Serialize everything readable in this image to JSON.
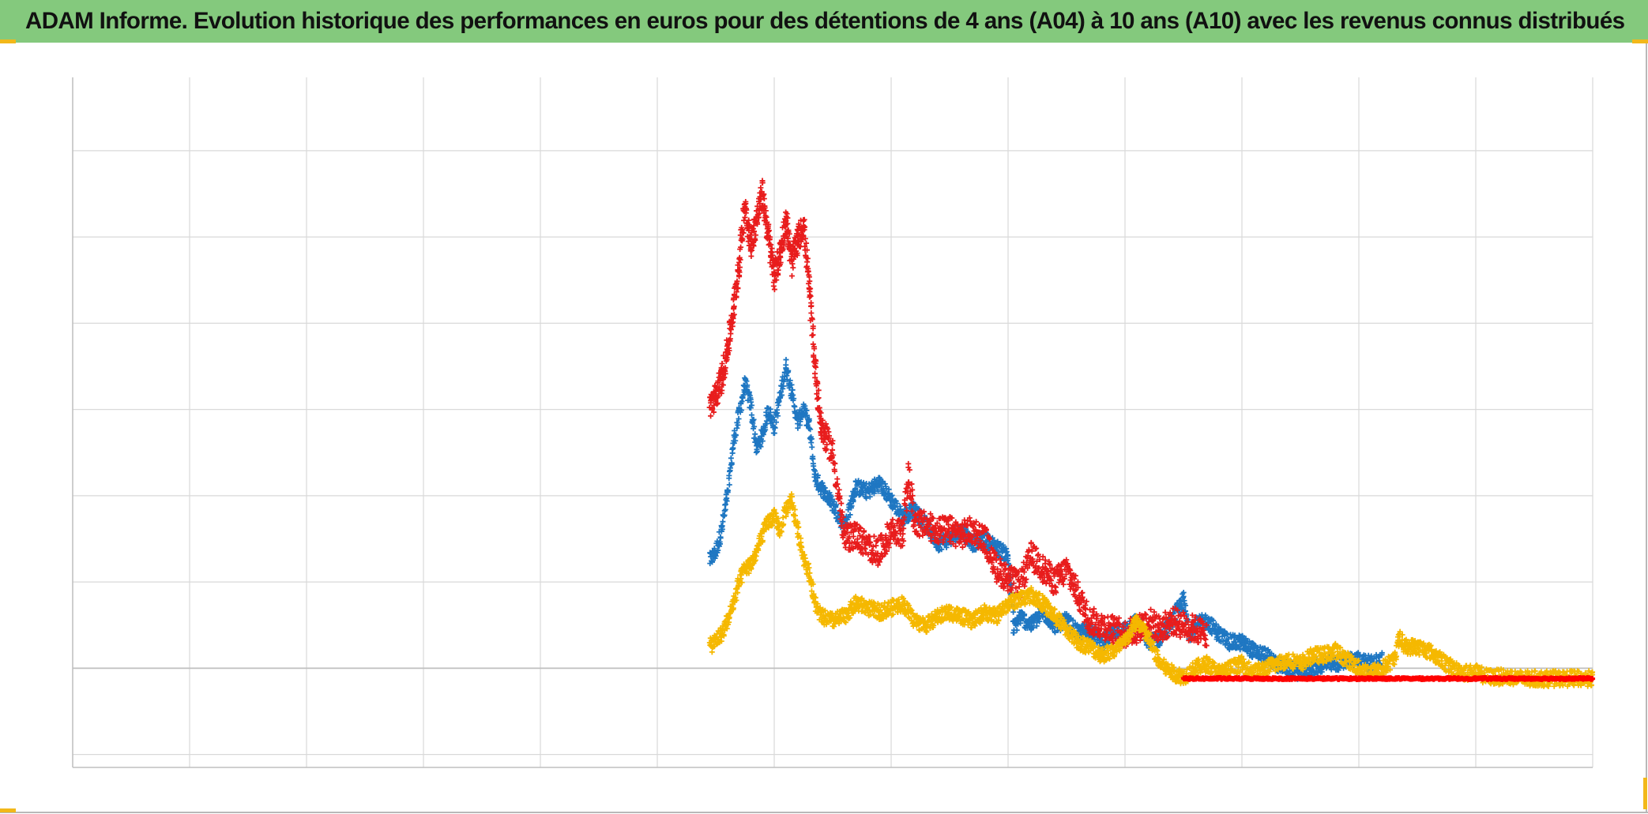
{
  "title": "ADAM Informe. Evolution historique des performances en euros pour des détentions de 4 ans (A04) à 10 ans (A10) avec les revenus connus distribués",
  "colors": {
    "title_bg": "#84c97d",
    "frame_corner": "#f2b81a",
    "grid": "#d9d9d9",
    "axis": "#bfbfbf"
  },
  "chart_data": {
    "type": "scatter",
    "title": "ADAM Informe. Evolution historique des performances en euros pour des détentions de 4 ans (A04) à 10 ans (A10) avec les revenus connus distribués",
    "xlabel": "",
    "ylabel": "",
    "x_tick_labels": [],
    "y_tick_labels": [],
    "xlim": [
      0,
      13
    ],
    "ylim": [
      -1.15,
      6.85
    ],
    "x_gridlines": 13,
    "y_gridlines": 7,
    "grid": true,
    "marker": "plus",
    "legend": "none",
    "series": [
      {
        "color": "#1f77c2",
        "points": [
          [
            5.45,
            1.25
          ],
          [
            5.5,
            1.35
          ],
          [
            5.55,
            1.6
          ],
          [
            5.6,
            2.0
          ],
          [
            5.65,
            2.6
          ],
          [
            5.7,
            2.95
          ],
          [
            5.75,
            3.3
          ],
          [
            5.8,
            3.05
          ],
          [
            5.85,
            2.55
          ],
          [
            5.9,
            2.7
          ],
          [
            5.95,
            3.0
          ],
          [
            6.0,
            2.8
          ],
          [
            6.05,
            3.15
          ],
          [
            6.1,
            3.5
          ],
          [
            6.15,
            3.2
          ],
          [
            6.2,
            2.85
          ],
          [
            6.25,
            3.0
          ],
          [
            6.3,
            2.8
          ],
          [
            6.35,
            2.2
          ],
          [
            6.4,
            2.1
          ],
          [
            6.5,
            1.9
          ],
          [
            6.6,
            1.65
          ],
          [
            6.7,
            2.1
          ],
          [
            6.8,
            2.05
          ],
          [
            6.9,
            2.15
          ],
          [
            7.0,
            1.95
          ],
          [
            7.1,
            1.75
          ],
          [
            7.2,
            1.85
          ],
          [
            7.3,
            1.65
          ],
          [
            7.4,
            1.45
          ],
          [
            7.5,
            1.5
          ],
          [
            7.6,
            1.6
          ],
          [
            7.7,
            1.45
          ],
          [
            7.8,
            1.5
          ],
          [
            7.9,
            1.4
          ],
          [
            8.0,
            1.3
          ],
          [
            8.05,
            0.45
          ],
          [
            8.1,
            0.6
          ],
          [
            8.2,
            0.5
          ],
          [
            8.3,
            0.65
          ],
          [
            8.4,
            0.5
          ],
          [
            8.5,
            0.55
          ],
          [
            8.6,
            0.4
          ],
          [
            8.7,
            0.45
          ],
          [
            8.8,
            0.3
          ],
          [
            8.9,
            0.4
          ],
          [
            9.0,
            0.45
          ],
          [
            9.1,
            0.55
          ],
          [
            9.2,
            0.3
          ],
          [
            9.3,
            0.35
          ],
          [
            9.4,
            0.55
          ],
          [
            9.5,
            0.8
          ],
          [
            9.55,
            0.4
          ],
          [
            9.6,
            0.5
          ],
          [
            9.7,
            0.55
          ],
          [
            9.8,
            0.4
          ],
          [
            9.9,
            0.3
          ],
          [
            10.0,
            0.3
          ],
          [
            10.1,
            0.2
          ],
          [
            10.2,
            0.15
          ],
          [
            10.3,
            0.05
          ],
          [
            10.4,
            0.0
          ],
          [
            10.5,
            -0.05
          ],
          [
            10.6,
            0.0
          ],
          [
            10.7,
            0.05
          ],
          [
            10.8,
            0.05
          ],
          [
            10.9,
            0.1
          ],
          [
            11.0,
            0.1
          ],
          [
            11.1,
            0.05
          ],
          [
            11.2,
            0.1
          ]
        ]
      },
      {
        "color": "#e81d1d",
        "points": [
          [
            5.45,
            3.05
          ],
          [
            5.5,
            3.15
          ],
          [
            5.55,
            3.35
          ],
          [
            5.6,
            3.7
          ],
          [
            5.65,
            4.15
          ],
          [
            5.7,
            4.7
          ],
          [
            5.75,
            5.4
          ],
          [
            5.8,
            4.9
          ],
          [
            5.85,
            5.2
          ],
          [
            5.9,
            5.5
          ],
          [
            5.95,
            5.0
          ],
          [
            6.0,
            4.55
          ],
          [
            6.05,
            4.8
          ],
          [
            6.1,
            5.2
          ],
          [
            6.15,
            4.7
          ],
          [
            6.2,
            4.95
          ],
          [
            6.25,
            5.15
          ],
          [
            6.3,
            4.4
          ],
          [
            6.35,
            3.5
          ],
          [
            6.4,
            2.8
          ],
          [
            6.5,
            2.5
          ],
          [
            6.6,
            1.5
          ],
          [
            6.7,
            1.55
          ],
          [
            6.8,
            1.4
          ],
          [
            6.9,
            1.35
          ],
          [
            7.0,
            1.6
          ],
          [
            7.1,
            1.55
          ],
          [
            7.15,
            2.25
          ],
          [
            7.2,
            1.7
          ],
          [
            7.3,
            1.65
          ],
          [
            7.4,
            1.6
          ],
          [
            7.5,
            1.6
          ],
          [
            7.6,
            1.55
          ],
          [
            7.7,
            1.6
          ],
          [
            7.8,
            1.5
          ],
          [
            7.9,
            1.15
          ],
          [
            8.0,
            1.05
          ],
          [
            8.1,
            0.95
          ],
          [
            8.2,
            1.3
          ],
          [
            8.3,
            1.15
          ],
          [
            8.4,
            1.0
          ],
          [
            8.5,
            1.15
          ],
          [
            8.6,
            0.85
          ],
          [
            8.7,
            0.55
          ],
          [
            8.8,
            0.5
          ],
          [
            8.9,
            0.45
          ],
          [
            9.0,
            0.4
          ],
          [
            9.1,
            0.45
          ],
          [
            9.2,
            0.55
          ],
          [
            9.3,
            0.45
          ],
          [
            9.4,
            0.55
          ],
          [
            9.5,
            0.5
          ],
          [
            9.6,
            0.45
          ],
          [
            9.7,
            0.4
          ]
        ]
      },
      {
        "color": "#f5b800",
        "points": [
          [
            5.45,
            0.25
          ],
          [
            5.5,
            0.32
          ],
          [
            5.55,
            0.4
          ],
          [
            5.6,
            0.55
          ],
          [
            5.65,
            0.75
          ],
          [
            5.7,
            1.0
          ],
          [
            5.75,
            1.15
          ],
          [
            5.8,
            1.2
          ],
          [
            5.85,
            1.35
          ],
          [
            5.9,
            1.55
          ],
          [
            5.95,
            1.7
          ],
          [
            6.0,
            1.75
          ],
          [
            6.05,
            1.6
          ],
          [
            6.1,
            1.85
          ],
          [
            6.15,
            1.95
          ],
          [
            6.2,
            1.6
          ],
          [
            6.25,
            1.3
          ],
          [
            6.3,
            1.1
          ],
          [
            6.35,
            0.75
          ],
          [
            6.4,
            0.6
          ],
          [
            6.5,
            0.55
          ],
          [
            6.6,
            0.6
          ],
          [
            6.7,
            0.75
          ],
          [
            6.8,
            0.7
          ],
          [
            6.9,
            0.65
          ],
          [
            7.0,
            0.7
          ],
          [
            7.1,
            0.75
          ],
          [
            7.2,
            0.55
          ],
          [
            7.3,
            0.5
          ],
          [
            7.4,
            0.6
          ],
          [
            7.5,
            0.65
          ],
          [
            7.6,
            0.6
          ],
          [
            7.7,
            0.55
          ],
          [
            7.8,
            0.65
          ],
          [
            7.9,
            0.6
          ],
          [
            8.0,
            0.75
          ],
          [
            8.1,
            0.8
          ],
          [
            8.2,
            0.85
          ],
          [
            8.3,
            0.75
          ],
          [
            8.4,
            0.6
          ],
          [
            8.5,
            0.45
          ],
          [
            8.6,
            0.3
          ],
          [
            8.7,
            0.25
          ],
          [
            8.8,
            0.15
          ],
          [
            8.9,
            0.2
          ],
          [
            9.0,
            0.3
          ],
          [
            9.1,
            0.55
          ],
          [
            9.2,
            0.35
          ],
          [
            9.3,
            0.05
          ],
          [
            9.4,
            -0.05
          ],
          [
            9.5,
            -0.1
          ],
          [
            9.6,
            0.0
          ],
          [
            9.7,
            0.05
          ],
          [
            9.8,
            -0.05
          ],
          [
            9.9,
            0.0
          ],
          [
            10.0,
            0.05
          ],
          [
            10.1,
            -0.05
          ],
          [
            10.2,
            0.0
          ],
          [
            10.3,
            0.05
          ],
          [
            10.4,
            0.1
          ],
          [
            10.5,
            0.05
          ],
          [
            10.6,
            0.15
          ],
          [
            10.7,
            0.15
          ],
          [
            10.8,
            0.2
          ],
          [
            10.9,
            0.1
          ],
          [
            11.0,
            0.0
          ],
          [
            11.1,
            -0.05
          ],
          [
            11.2,
            0.0
          ],
          [
            11.3,
            0.1
          ],
          [
            11.35,
            0.35
          ],
          [
            11.4,
            0.25
          ],
          [
            11.5,
            0.25
          ],
          [
            11.6,
            0.2
          ],
          [
            11.7,
            0.1
          ],
          [
            11.8,
            0.0
          ],
          [
            11.9,
            -0.05
          ],
          [
            12.0,
            -0.05
          ],
          [
            12.1,
            -0.1
          ],
          [
            12.2,
            -0.1
          ],
          [
            12.3,
            -0.1
          ],
          [
            12.4,
            -0.12
          ],
          [
            12.5,
            -0.12
          ],
          [
            12.6,
            -0.12
          ],
          [
            12.7,
            -0.12
          ],
          [
            12.8,
            -0.12
          ],
          [
            12.9,
            -0.12
          ],
          [
            13.0,
            -0.12
          ]
        ]
      },
      {
        "color": "#ff0000",
        "points": [
          [
            9.5,
            -0.12
          ],
          [
            10.0,
            -0.12
          ],
          [
            10.5,
            -0.12
          ],
          [
            11.0,
            -0.12
          ],
          [
            11.5,
            -0.12
          ],
          [
            12.0,
            -0.12
          ],
          [
            12.5,
            -0.12
          ],
          [
            13.0,
            -0.12
          ]
        ]
      }
    ]
  }
}
